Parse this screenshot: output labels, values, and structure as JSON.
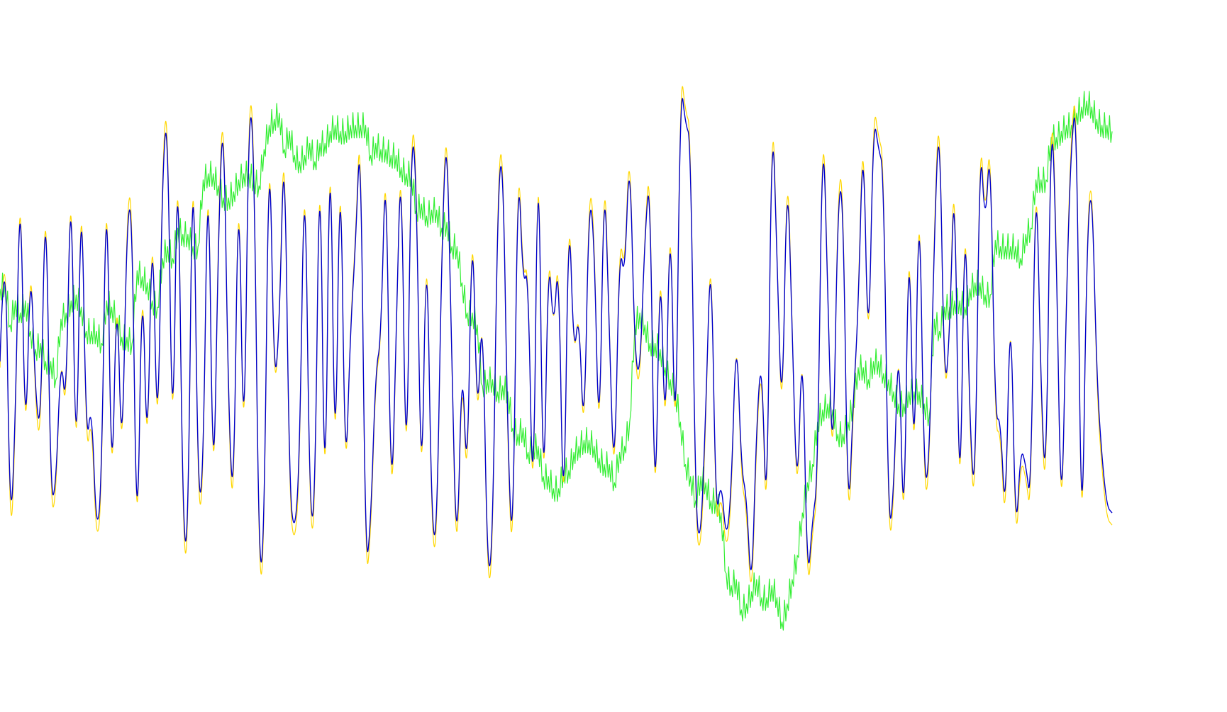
{
  "chart_data": {
    "type": "line",
    "title": "",
    "xlabel": "",
    "ylabel": "",
    "grid": false,
    "legend": "none",
    "ylim": [
      0,
      100
    ],
    "series": [
      {
        "color": "#FFD700",
        "values": [
          44,
          75,
          12,
          32,
          82,
          25,
          66,
          37,
          31,
          80,
          20,
          22,
          48,
          34,
          83,
          18,
          82,
          28,
          37,
          14,
          22,
          84,
          16,
          63,
          23,
          71,
          73,
          6,
          66,
          23,
          75,
          25,
          79,
          89,
          22,
          89,
          16,
          11,
          90,
          20,
          23,
          87,
          15,
          68,
          91,
          35,
          17,
          84,
          21,
          90,
          84,
          8,
          12,
          90,
          38,
          51,
          88,
          22,
          14,
          26,
          86,
          18,
          17,
          90,
          9,
          94,
          17,
          88,
          20,
          51,
          65,
          88,
          8,
          16,
          43,
          47,
          85,
          16,
          46,
          86,
          16,
          86,
          78,
          15,
          73,
          16,
          13,
          65,
          88,
          41,
          8,
          47,
          20,
          75,
          30,
          58,
          7,
          12,
          74,
          83,
          29,
          9,
          83,
          58,
          62,
          12,
          92,
          13,
          67,
          48,
          66,
          10,
          76,
          44,
          55,
          28,
          75,
          68,
          25,
          82,
          49,
          21,
          67,
          59,
          84,
          45,
          40,
          67,
          79,
          11,
          69,
          26,
          77,
          22,
          94,
          86,
          84,
          17,
          13,
          35,
          69,
          16,
          24,
          13,
          21,
          53,
          25,
          21,
          3,
          33,
          46,
          12,
          91,
          65,
          30,
          82,
          51,
          18,
          53,
          5,
          17,
          23,
          90,
          58,
          22,
          74,
          76,
          14,
          36,
          54,
          88,
          40,
          88,
          82,
          79,
          14,
          21,
          53,
          9,
          75,
          19,
          81,
          22,
          26,
          68,
          90,
          37,
          50,
          82,
          11,
          77,
          32,
          19,
          86,
          67,
          85,
          33,
          34,
          15,
          60,
          12,
          29,
          26,
          19,
          84,
          38,
          20,
          92,
          67,
          12,
          57,
          84,
          90,
          5,
          65,
          78,
          40,
          27,
          19,
          18
        ]
      },
      {
        "color": "#0000CC",
        "values": [
          45,
          72,
          15,
          34,
          80,
          27,
          64,
          39,
          33,
          78,
          22,
          24,
          47,
          36,
          81,
          20,
          80,
          30,
          39,
          16,
          24,
          82,
          18,
          61,
          25,
          69,
          71,
          8,
          64,
          25,
          73,
          27,
          77,
          87,
          24,
          87,
          18,
          13,
          88,
          22,
          25,
          85,
          17,
          66,
          89,
          37,
          19,
          82,
          23,
          88,
          82,
          10,
          14,
          88,
          40,
          50,
          86,
          24,
          16,
          28,
          84,
          20,
          19,
          88,
          11,
          92,
          19,
          86,
          22,
          50,
          64,
          86,
          10,
          18,
          44,
          48,
          83,
          18,
          47,
          84,
          18,
          84,
          76,
          17,
          71,
          18,
          15,
          64,
          86,
          42,
          10,
          48,
          22,
          73,
          32,
          57,
          9,
          14,
          72,
          81,
          31,
          11,
          81,
          57,
          61,
          14,
          90,
          15,
          65,
          49,
          64,
          12,
          74,
          45,
          54,
          30,
          73,
          66,
          27,
          80,
          48,
          23,
          65,
          58,
          82,
          46,
          42,
          66,
          77,
          13,
          67,
          28,
          75,
          24,
          92,
          84,
          82,
          19,
          15,
          37,
          67,
          18,
          26,
          15,
          23,
          52,
          27,
          23,
          5,
          35,
          47,
          14,
          89,
          64,
          32,
          80,
          50,
          20,
          52,
          7,
          19,
          25,
          88,
          57,
          24,
          72,
          74,
          16,
          38,
          53,
          86,
          42,
          86,
          80,
          77,
          16,
          23,
          52,
          11,
          73,
          21,
          79,
          24,
          28,
          66,
          88,
          39,
          49,
          80,
          13,
          75,
          34,
          21,
          84,
          66,
          83,
          35,
          36,
          17,
          59,
          14,
          31,
          28,
          21,
          82,
          40,
          22,
          90,
          65,
          14,
          56,
          82,
          88,
          7,
          64,
          76,
          42,
          29,
          21,
          20
        ]
      },
      {
        "color": "#33EE33",
        "values": [
          57,
          58,
          51,
          55,
          53,
          55,
          50,
          47,
          48,
          45,
          45,
          42,
          52,
          53,
          55,
          56,
          54,
          50,
          50,
          50,
          48,
          55,
          54,
          52,
          49,
          49,
          48,
          60,
          59,
          58,
          55,
          54,
          62,
          64,
          62,
          67,
          66,
          66,
          64,
          64,
          75,
          76,
          76,
          74,
          72,
          72,
          73,
          75,
          76,
          76,
          75,
          74,
          80,
          84,
          85,
          86,
          80,
          83,
          79,
          78,
          79,
          81,
          78,
          81,
          81,
          83,
          84,
          83,
          83,
          84,
          84,
          84,
          84,
          79,
          81,
          80,
          80,
          79,
          79,
          77,
          76,
          76,
          70,
          71,
          69,
          70,
          70,
          67,
          68,
          64,
          64,
          58,
          53,
          53,
          51,
          41,
          42,
          42,
          40,
          41,
          40,
          34,
          33,
          34,
          30,
          31,
          31,
          26,
          26,
          24,
          24,
          27,
          27,
          30,
          31,
          32,
          32,
          31,
          29,
          28,
          28,
          25,
          30,
          31,
          35,
          51,
          53,
          51,
          48,
          48,
          47,
          44,
          42,
          40,
          35,
          28,
          26,
          22,
          26,
          25,
          22,
          22,
          20,
          10,
          8,
          9,
          4,
          5,
          7,
          9,
          6,
          6,
          8,
          6,
          2,
          5,
          9,
          13,
          20,
          25,
          28,
          35,
          37,
          38,
          37,
          33,
          33,
          35,
          38,
          44,
          44,
          42,
          45,
          45,
          43,
          42,
          40,
          38,
          38,
          40,
          40,
          40,
          38,
          36,
          52,
          50,
          54,
          54,
          55,
          55,
          54,
          57,
          58,
          58,
          56,
          56,
          65,
          64,
          64,
          64,
          64,
          62,
          66,
          67,
          75,
          75,
          75,
          82,
          82,
          83,
          84,
          84,
          86,
          87,
          88,
          87,
          85,
          84,
          84,
          83
        ]
      }
    ]
  }
}
